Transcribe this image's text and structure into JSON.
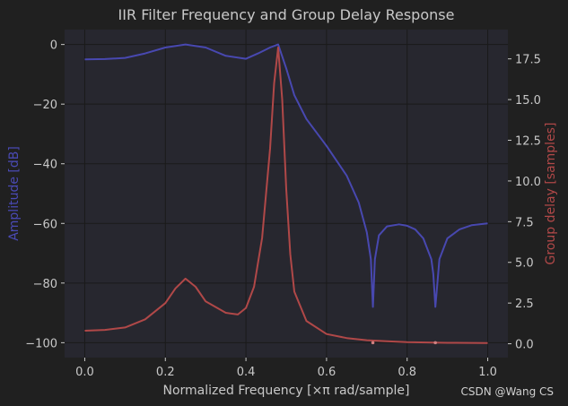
{
  "chart_data": {
    "type": "line",
    "title": "IIR Filter Frequency and Group Delay Response",
    "xlabel": "Normalized Frequency [×π rad/sample]",
    "ylabel_left": "Amplitude [dB]",
    "ylabel_right": "Group delay [samples]",
    "xlim": [
      -0.05,
      1.05
    ],
    "ylim_left": [
      -105,
      5
    ],
    "ylim_right": [
      -0.85,
      19.3
    ],
    "x_ticks": [
      "0.0",
      "0.2",
      "0.4",
      "0.6",
      "0.8",
      "1.0"
    ],
    "y_left_ticks": [
      "0",
      "−20",
      "−40",
      "−60",
      "−80",
      "−100"
    ],
    "y_right_ticks": [
      "0.0",
      "2.5",
      "5.0",
      "7.5",
      "10.0",
      "12.5",
      "15.0",
      "17.5"
    ],
    "grid": true,
    "colors": {
      "background": "#202020",
      "plot_area": "#27272f",
      "amplitude": "#4848b0",
      "group_delay": "#b04848",
      "grid": "#1a1a1a"
    },
    "series": [
      {
        "axis": "left",
        "x": [
          0,
          0.05,
          0.1,
          0.15,
          0.2,
          0.25,
          0.3,
          0.35,
          0.4,
          0.43,
          0.46,
          0.48,
          0.5,
          0.52,
          0.55,
          0.6,
          0.65,
          0.68,
          0.7,
          0.71,
          0.715,
          0.72,
          0.73,
          0.75,
          0.78,
          0.8,
          0.82,
          0.84,
          0.86,
          0.865,
          0.87,
          0.88,
          0.9,
          0.93,
          0.96,
          1.0
        ],
        "values": [
          -5,
          -4.9,
          -4.5,
          -3,
          -1,
          0,
          -1,
          -3.8,
          -4.8,
          -3,
          -1,
          0,
          -8,
          -17,
          -25,
          -34,
          -44,
          -53,
          -63,
          -72,
          -88,
          -72,
          -64,
          -61,
          -60.3,
          -60.8,
          -62,
          -65,
          -72,
          -77,
          -88,
          -72,
          -65,
          -62,
          -60.6,
          -60
        ]
      },
      {
        "axis": "right",
        "x": [
          0,
          0.05,
          0.1,
          0.15,
          0.2,
          0.225,
          0.25,
          0.275,
          0.3,
          0.35,
          0.38,
          0.4,
          0.42,
          0.44,
          0.46,
          0.47,
          0.48,
          0.49,
          0.5,
          0.51,
          0.52,
          0.55,
          0.6,
          0.65,
          0.7,
          0.75,
          0.8,
          0.85,
          0.9,
          1.0
        ],
        "values": [
          0.8,
          0.85,
          1.0,
          1.5,
          2.5,
          3.4,
          4.0,
          3.5,
          2.6,
          1.9,
          1.8,
          2.2,
          3.5,
          6.5,
          12.0,
          16.0,
          18.2,
          15.0,
          9.5,
          5.5,
          3.2,
          1.4,
          0.6,
          0.35,
          0.22,
          0.15,
          0.1,
          0.08,
          0.06,
          0.05
        ]
      }
    ],
    "markers": [
      {
        "axis": "left",
        "x": 0.715,
        "y": -100
      },
      {
        "axis": "left",
        "x": 0.87,
        "y": -100
      }
    ]
  },
  "watermark": "CSDN @Wang CS"
}
